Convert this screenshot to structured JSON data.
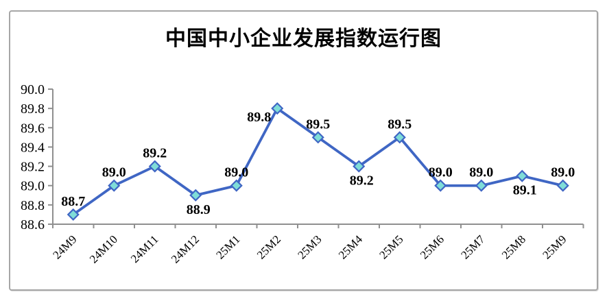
{
  "chart_data": {
    "type": "line",
    "title": "中国中小企业发展指数运行图",
    "categories": [
      "24M9",
      "24M10",
      "24M11",
      "24M12",
      "25M1",
      "25M2",
      "25M3",
      "25M4",
      "25M5",
      "25M6",
      "25M7",
      "25M8",
      "25M9"
    ],
    "series": [
      {
        "values": [
          88.7,
          89.0,
          89.2,
          88.9,
          89.0,
          89.8,
          89.5,
          89.2,
          89.5,
          89.0,
          89.0,
          89.1,
          89.0
        ],
        "data_labels": [
          "88.7",
          "89.0",
          "89.2",
          "88.9",
          "89.0",
          "89.8",
          "89.5",
          "89.2",
          "89.5",
          "89.0",
          "89.0",
          "89.1",
          "89.0"
        ],
        "label_positions": [
          "above",
          "above",
          "above",
          "below",
          "above",
          "left",
          "above",
          "below",
          "above",
          "above",
          "above",
          "below",
          "above"
        ]
      }
    ],
    "ylim": [
      88.6,
      90.0
    ],
    "ytick_step": 0.2,
    "ytick_labels": [
      "90.0",
      "89.8",
      "89.6",
      "89.4",
      "89.2",
      "89.0",
      "88.8",
      "88.6"
    ],
    "xlabel": "",
    "ylabel": "",
    "grid": "off",
    "legend": "none",
    "colors": {
      "line": "#3f66c4",
      "marker_fill": "#7fddd8",
      "marker_border": "#3f66c4",
      "axis": "#8f8f8f",
      "label_text": "#000000",
      "frame_border": "#a6a6a6",
      "background": "#ffffff"
    }
  }
}
